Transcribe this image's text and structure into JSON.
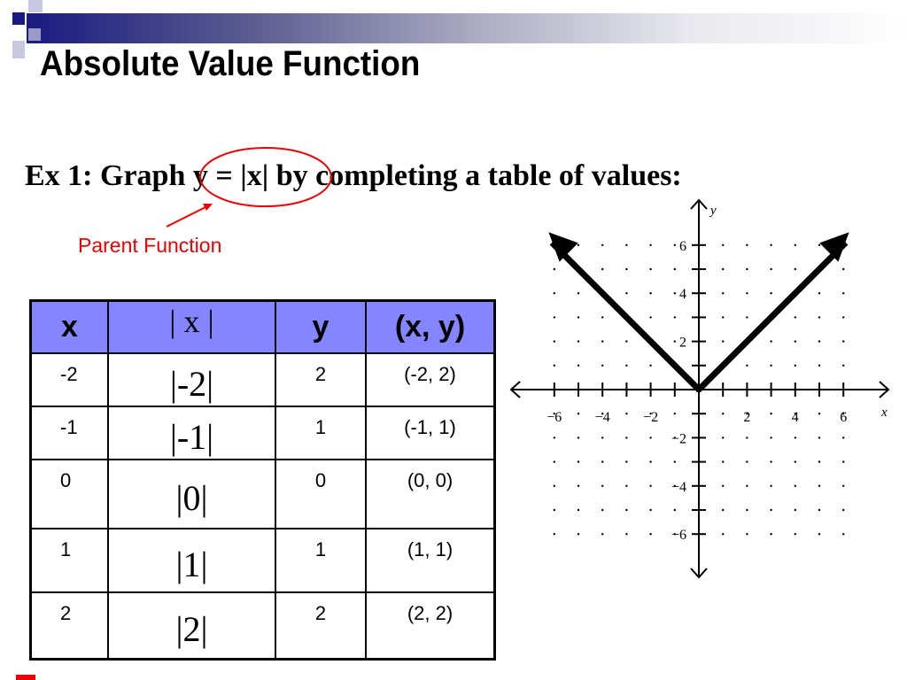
{
  "slide": {
    "title": "Absolute Value Function",
    "example": "Ex 1: Graph y = |x| by completing a table of values:",
    "annotation": "Parent Function",
    "accent": "#ee0000",
    "header_fill": "#8585ff"
  },
  "table": {
    "headers": [
      "x",
      "| x |",
      "y",
      "(x, y)"
    ],
    "rows": [
      [
        "-2",
        "|-2|",
        "2",
        "(-2, 2)"
      ],
      [
        "-1",
        "|-1|",
        "1",
        "(-1, 1)"
      ],
      [
        "0",
        "|0|",
        "0",
        "(0, 0)"
      ],
      [
        "1",
        "|1|",
        "1",
        "(1, 1)"
      ],
      [
        "2",
        "|2|",
        "2",
        "(2, 2)"
      ]
    ]
  },
  "chart_data": {
    "type": "line",
    "xlabel": "x",
    "ylabel": "y",
    "xlim": [
      -7,
      7
    ],
    "ylim": [
      -7,
      7
    ],
    "grid": "dots",
    "x_ticks": [
      "−6",
      "−4",
      "−2",
      "2",
      "4",
      "6"
    ],
    "y_ticks": [
      "6",
      "4",
      "2",
      "−2",
      "−4",
      "−6"
    ],
    "series": [
      {
        "x": [
          -6,
          -4,
          -2,
          0,
          2,
          4,
          6
        ],
        "y": [
          6,
          4,
          2,
          0,
          2,
          4,
          6
        ]
      }
    ]
  }
}
